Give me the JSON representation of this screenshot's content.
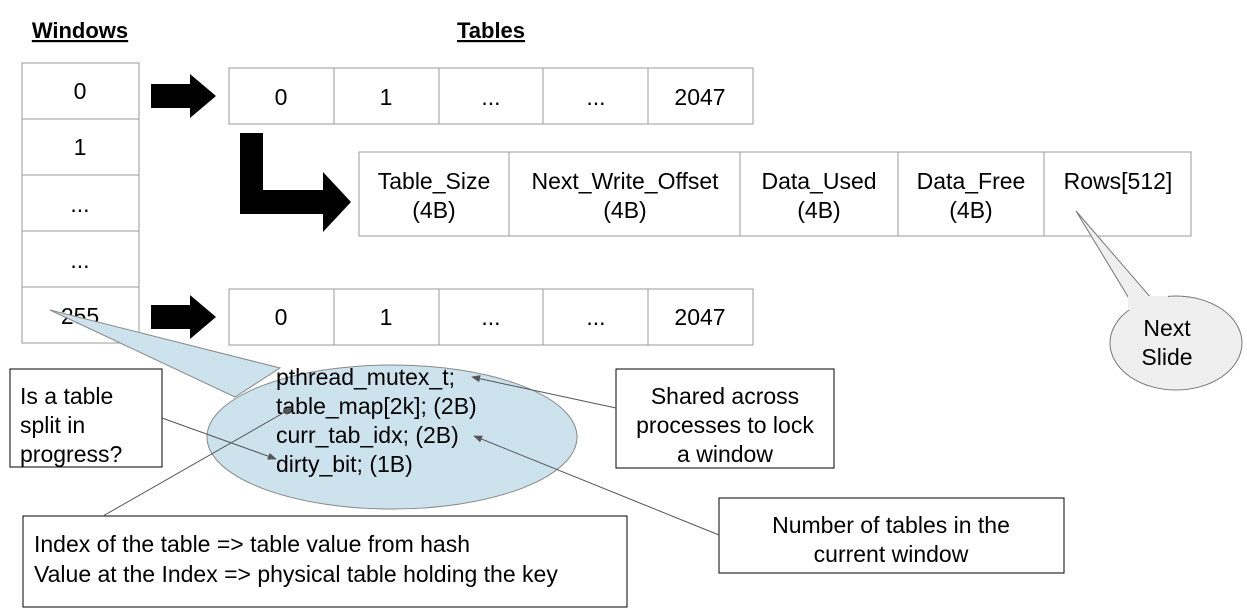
{
  "headings": {
    "windows": "Windows",
    "tables": "Tables"
  },
  "windows": [
    "0",
    "1",
    "...",
    "...",
    "255"
  ],
  "table_row_top": [
    "0",
    "1",
    "...",
    "...",
    "2047"
  ],
  "table_row_bottom": [
    "0",
    "1",
    "...",
    "...",
    "2047"
  ],
  "table_header_fields": [
    {
      "name": "Table_Size",
      "size": "(4B)"
    },
    {
      "name": "Next_Write_Offset",
      "size": "(4B)"
    },
    {
      "name": "Data_Used",
      "size": "(4B)"
    },
    {
      "name": "Data_Free",
      "size": "(4B)"
    },
    {
      "name": "Rows[512]",
      "size": ""
    }
  ],
  "window_struct": {
    "fields": [
      "pthread_mutex_t;",
      "table_map[2k]; (2B)",
      "curr_tab_idx; (2B)",
      "dirty_bit; (1B)"
    ],
    "fill": "#cce3ee"
  },
  "callouts": {
    "split": [
      "Is a table",
      "split in",
      "progress?"
    ],
    "shared": [
      "Shared across",
      "processes to lock",
      "a window"
    ],
    "index": [
      "Index of the table  => table value from hash",
      "Value at the Index => physical table holding the key"
    ],
    "num_tables": [
      "Number of tables in the",
      "current window"
    ],
    "next_slide": [
      "Next",
      "Slide"
    ]
  },
  "colors": {
    "line": "#999999",
    "bubble": "#cce3ee",
    "next_slide_fill": "#efefef"
  }
}
